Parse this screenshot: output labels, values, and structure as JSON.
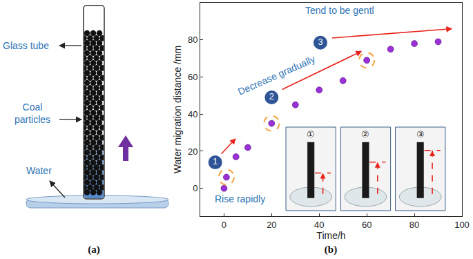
{
  "diagram": {
    "panel_label": "(a)",
    "labels": {
      "tube": "Glass tube",
      "particles": "Coal particles",
      "water": "Water"
    }
  },
  "chart_data": {
    "panel_label": "(b)",
    "type": "scatter",
    "x_label": "Time/h",
    "y_label": "Water migration distance /mm",
    "x": [
      0,
      1,
      5,
      10,
      20,
      30,
      40,
      50,
      60,
      70,
      80,
      90
    ],
    "values": [
      0,
      6,
      17,
      22,
      35,
      45,
      53,
      58,
      69,
      75,
      78,
      79
    ],
    "color": "#9b30d9",
    "marker": "circle",
    "xlim": [
      -10,
      100
    ],
    "xticks": [
      0,
      20,
      40,
      60,
      80,
      100
    ],
    "ylim": [
      -15,
      100
    ],
    "yticks": [
      0,
      20,
      40,
      60,
      80
    ],
    "grid": false,
    "annotations": [
      "Rise rapidly",
      "Decrease gradually",
      "Tend to be gentl"
    ],
    "stages": [
      {
        "label": "1",
        "x": 1,
        "y": 6
      },
      {
        "label": "2",
        "x": 20,
        "y": 35
      },
      {
        "label": "3",
        "x": 60,
        "y": 69
      }
    ],
    "insets": [
      "①",
      "②",
      "③"
    ]
  }
}
